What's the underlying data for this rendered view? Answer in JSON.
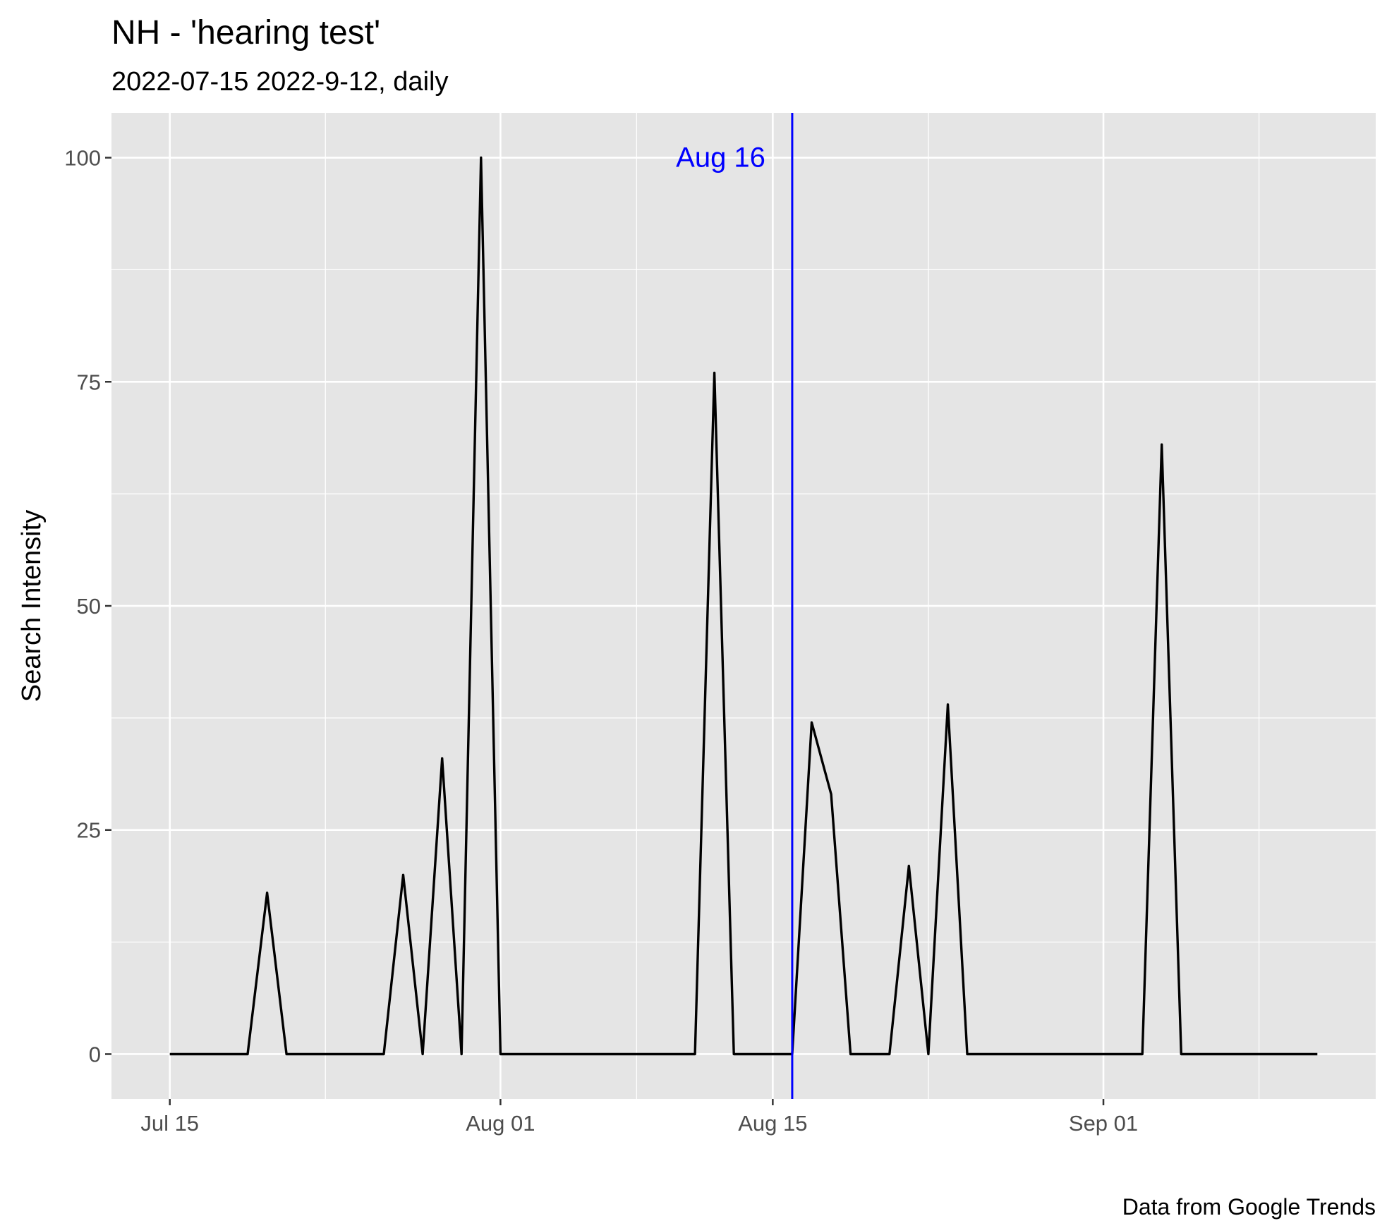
{
  "chart_data": {
    "type": "line",
    "title": "NH  - 'hearing test'",
    "subtitle": "2022-07-15 2022-9-12, daily",
    "caption": "Data from Google Trends",
    "xlabel": "",
    "ylabel": "Search Intensity",
    "ylim": [
      -5,
      105
    ],
    "xlim": [
      "2022-07-12",
      "2022-09-15"
    ],
    "yticks": [
      0,
      25,
      50,
      75,
      100
    ],
    "ytick_labels": [
      "0",
      "25",
      "50",
      "75",
      "100"
    ],
    "xticks": [
      "2022-07-15",
      "2022-08-01",
      "2022-08-15",
      "2022-09-01"
    ],
    "xtick_labels": [
      "Jul 15",
      "Aug 01",
      "Aug 15",
      "Sep 01"
    ],
    "grid": true,
    "colors": {
      "panel_background": "#e5e5e5",
      "grid": "#ffffff",
      "line": "#000000",
      "annotation": "#0000ff"
    },
    "annotation": {
      "x": "2022-08-16",
      "label": "Aug 16"
    },
    "series": [
      {
        "x": [
          "2022-07-15",
          "2022-07-16",
          "2022-07-17",
          "2022-07-18",
          "2022-07-19",
          "2022-07-20",
          "2022-07-21",
          "2022-07-22",
          "2022-07-23",
          "2022-07-24",
          "2022-07-25",
          "2022-07-26",
          "2022-07-27",
          "2022-07-28",
          "2022-07-29",
          "2022-07-30",
          "2022-07-31",
          "2022-08-01",
          "2022-08-02",
          "2022-08-03",
          "2022-08-04",
          "2022-08-05",
          "2022-08-06",
          "2022-08-07",
          "2022-08-08",
          "2022-08-09",
          "2022-08-10",
          "2022-08-11",
          "2022-08-12",
          "2022-08-13",
          "2022-08-14",
          "2022-08-15",
          "2022-08-16",
          "2022-08-17",
          "2022-08-18",
          "2022-08-19",
          "2022-08-20",
          "2022-08-21",
          "2022-08-22",
          "2022-08-23",
          "2022-08-24",
          "2022-08-25",
          "2022-08-26",
          "2022-08-27",
          "2022-08-28",
          "2022-08-29",
          "2022-08-30",
          "2022-08-31",
          "2022-09-01",
          "2022-09-02",
          "2022-09-03",
          "2022-09-04",
          "2022-09-05",
          "2022-09-06",
          "2022-09-07",
          "2022-09-08",
          "2022-09-09",
          "2022-09-10",
          "2022-09-11",
          "2022-09-12"
        ],
        "values": [
          0,
          0,
          0,
          0,
          0,
          18,
          0,
          0,
          0,
          0,
          0,
          0,
          20,
          0,
          33,
          0,
          100,
          0,
          0,
          0,
          0,
          0,
          0,
          0,
          0,
          0,
          0,
          0,
          76,
          0,
          0,
          0,
          0,
          37,
          29,
          0,
          0,
          0,
          21,
          0,
          39,
          0,
          0,
          0,
          0,
          0,
          0,
          0,
          0,
          0,
          0,
          68,
          0,
          0,
          0,
          0,
          0,
          0,
          0,
          0
        ]
      }
    ]
  }
}
